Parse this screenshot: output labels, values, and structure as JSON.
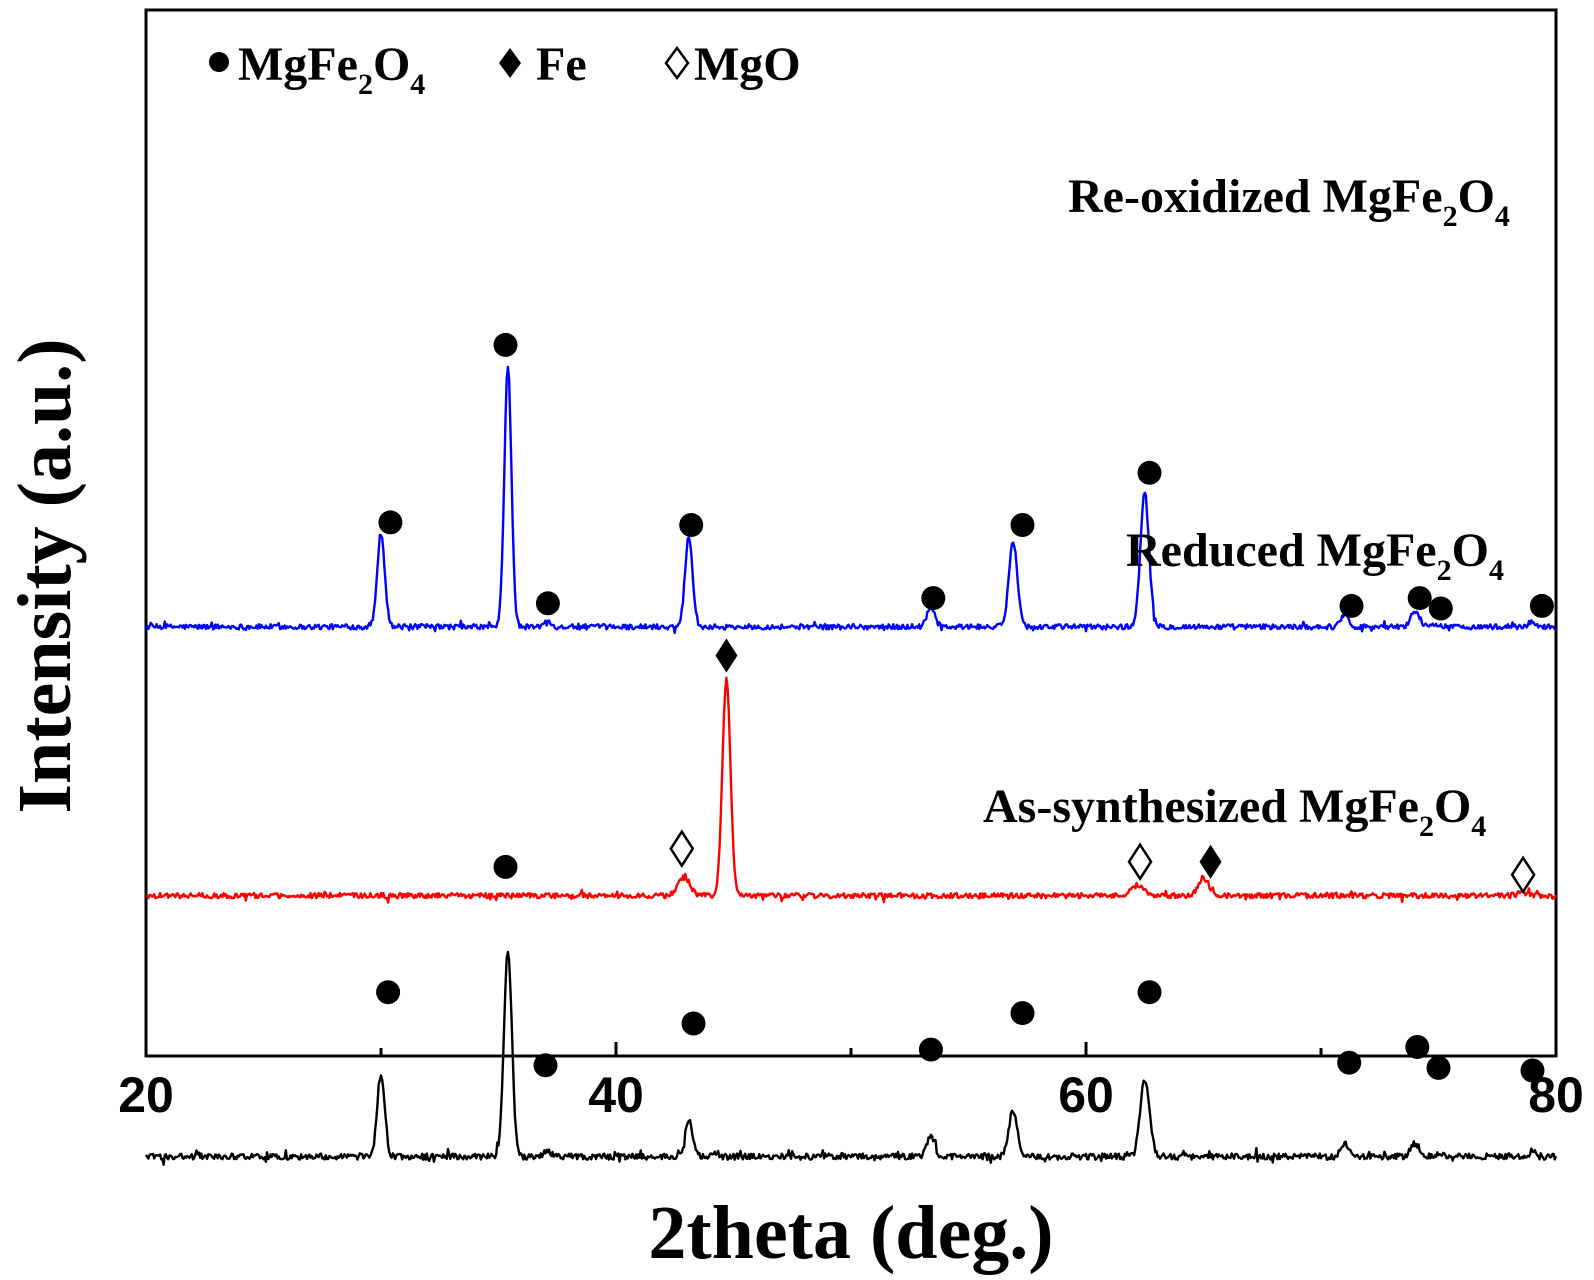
{
  "chart_data": {
    "type": "line",
    "xlabel": "2theta (deg.)",
    "ylabel": "Intensity (a.u.)",
    "xlim": [
      20,
      80
    ],
    "x_ticks": [
      20,
      40,
      60,
      80
    ],
    "x_minor_ticks": [
      30,
      50,
      70
    ],
    "y_ticks_shown": false,
    "grid": false,
    "legend": {
      "position": "top-left",
      "entries": [
        {
          "marker": "filled-circle",
          "main": "MgFe",
          "sub1": "2",
          "mid": "O",
          "sub2": "4"
        },
        {
          "marker": "filled-diamond",
          "main": "Fe"
        },
        {
          "marker": "open-diamond",
          "main": "MgO"
        }
      ]
    },
    "series": [
      {
        "key": "reoxidized",
        "color": "#0000ff",
        "label": {
          "main": "Re-oxidized MgFe",
          "sub1": "2",
          "mid": "O",
          "sub2": "4"
        },
        "baseline": 0.2,
        "noise": 0.01,
        "peaks": [
          {
            "x": 30.0,
            "h": 0.36,
            "w": 0.16
          },
          {
            "x": 35.4,
            "h": 1.0,
            "w": 0.15
          },
          {
            "x": 37.1,
            "h": 0.02,
            "w": 0.15
          },
          {
            "x": 43.1,
            "h": 0.35,
            "w": 0.16
          },
          {
            "x": 53.4,
            "h": 0.08,
            "w": 0.16
          },
          {
            "x": 56.9,
            "h": 0.33,
            "w": 0.18
          },
          {
            "x": 62.5,
            "h": 0.52,
            "w": 0.18
          },
          {
            "x": 71.0,
            "h": 0.05,
            "w": 0.16
          },
          {
            "x": 74.0,
            "h": 0.06,
            "w": 0.18
          },
          {
            "x": 75.0,
            "h": 0.01,
            "w": 0.15
          },
          {
            "x": 79.0,
            "h": 0.02,
            "w": 0.15
          }
        ],
        "markers": [
          {
            "x": 30.4,
            "y": 0.6,
            "type": "filled-circle"
          },
          {
            "x": 35.3,
            "y": 1.28,
            "type": "filled-circle"
          },
          {
            "x": 37.1,
            "y": 0.29,
            "type": "filled-circle"
          },
          {
            "x": 43.2,
            "y": 0.59,
            "type": "filled-circle"
          },
          {
            "x": 53.5,
            "y": 0.31,
            "type": "filled-circle"
          },
          {
            "x": 57.3,
            "y": 0.59,
            "type": "filled-circle"
          },
          {
            "x": 62.7,
            "y": 0.79,
            "type": "filled-circle"
          },
          {
            "x": 71.3,
            "y": 0.28,
            "type": "filled-circle"
          },
          {
            "x": 74.2,
            "y": 0.31,
            "type": "filled-circle"
          },
          {
            "x": 75.1,
            "y": 0.27,
            "type": "filled-circle"
          },
          {
            "x": 79.4,
            "y": 0.28,
            "type": "filled-circle"
          }
        ]
      },
      {
        "key": "reduced",
        "color": "#ff0000",
        "label": {
          "main": "Reduced MgFe",
          "sub1": "2",
          "mid": "O",
          "sub2": "4"
        },
        "baseline": -0.83,
        "noise": 0.01,
        "peaks": [
          {
            "x": 42.9,
            "h": 0.07,
            "w": 0.25
          },
          {
            "x": 44.7,
            "h": 0.83,
            "w": 0.17
          },
          {
            "x": 62.2,
            "h": 0.04,
            "w": 0.3
          },
          {
            "x": 65.0,
            "h": 0.07,
            "w": 0.22
          },
          {
            "x": 78.5,
            "h": 0.01,
            "w": 0.2
          }
        ],
        "markers": [
          {
            "x": 42.8,
            "y": -0.65,
            "type": "open-diamond"
          },
          {
            "x": 44.7,
            "y": 0.09,
            "type": "filled-diamond"
          },
          {
            "x": 62.3,
            "y": -0.7,
            "type": "open-diamond"
          },
          {
            "x": 65.3,
            "y": -0.7,
            "type": "filled-diamond"
          },
          {
            "x": 78.6,
            "y": -0.75,
            "type": "open-diamond"
          }
        ]
      },
      {
        "key": "assynthesized",
        "color": "#000000",
        "label": {
          "main": "As-synthesized MgFe",
          "sub1": "2",
          "mid": "O",
          "sub2": "4"
        },
        "baseline": -1.83,
        "noise": 0.012,
        "peaks": [
          {
            "x": 30.0,
            "h": 0.31,
            "w": 0.16
          },
          {
            "x": 35.4,
            "h": 0.79,
            "w": 0.17
          },
          {
            "x": 37.1,
            "h": 0.02,
            "w": 0.15
          },
          {
            "x": 43.1,
            "h": 0.14,
            "w": 0.16
          },
          {
            "x": 53.4,
            "h": 0.08,
            "w": 0.16
          },
          {
            "x": 56.9,
            "h": 0.18,
            "w": 0.18
          },
          {
            "x": 62.5,
            "h": 0.29,
            "w": 0.2
          },
          {
            "x": 71.0,
            "h": 0.05,
            "w": 0.16
          },
          {
            "x": 74.0,
            "h": 0.05,
            "w": 0.18
          },
          {
            "x": 75.0,
            "h": 0.01,
            "w": 0.15
          },
          {
            "x": 79.0,
            "h": 0.02,
            "w": 0.15
          }
        ],
        "markers": [
          {
            "x": 30.3,
            "y": -1.2,
            "type": "filled-circle"
          },
          {
            "x": 35.3,
            "y": -0.72,
            "type": "filled-circle"
          },
          {
            "x": 37.0,
            "y": -1.48,
            "type": "filled-circle"
          },
          {
            "x": 43.3,
            "y": -1.32,
            "type": "filled-circle"
          },
          {
            "x": 53.4,
            "y": -1.42,
            "type": "filled-circle"
          },
          {
            "x": 57.3,
            "y": -1.28,
            "type": "filled-circle"
          },
          {
            "x": 62.7,
            "y": -1.2,
            "type": "filled-circle"
          },
          {
            "x": 71.2,
            "y": -1.47,
            "type": "filled-circle"
          },
          {
            "x": 74.1,
            "y": -1.41,
            "type": "filled-circle"
          },
          {
            "x": 75.0,
            "y": -1.49,
            "type": "filled-circle"
          },
          {
            "x": 79.0,
            "y": -1.5,
            "type": "filled-circle"
          }
        ]
      }
    ]
  }
}
